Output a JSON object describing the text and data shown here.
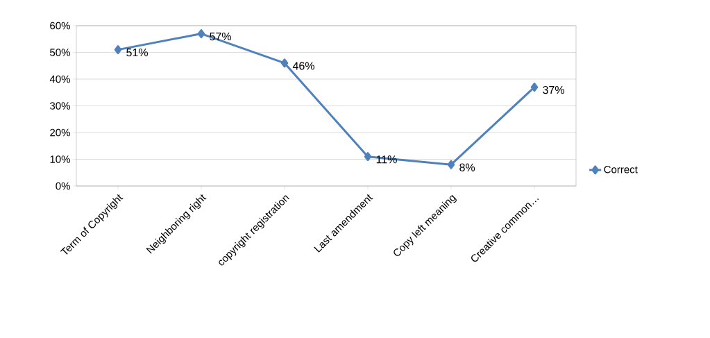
{
  "chart_data": {
    "type": "line",
    "categories": [
      "Term of Copyright",
      "Neighboring right",
      "copyright registration",
      "Last amendment",
      "Copy left meaning",
      "Creative common…"
    ],
    "series": [
      {
        "name": "Correct",
        "color": "#4f81bd",
        "values": [
          51,
          57,
          46,
          11,
          8,
          37
        ],
        "value_labels": [
          "51%",
          "57%",
          "46%",
          "11%",
          "8%",
          "37%"
        ]
      }
    ],
    "ylim": [
      0,
      60
    ],
    "yticks": [
      {
        "value": 0,
        "label": "0%"
      },
      {
        "value": 10,
        "label": "10%"
      },
      {
        "value": 20,
        "label": "20%"
      },
      {
        "value": 30,
        "label": "30%"
      },
      {
        "value": 40,
        "label": "40%"
      },
      {
        "value": 50,
        "label": "50%"
      },
      {
        "value": 60,
        "label": "60%"
      }
    ],
    "grid": "y",
    "legend": "right",
    "marker": "diamond",
    "line_style": "solid"
  }
}
